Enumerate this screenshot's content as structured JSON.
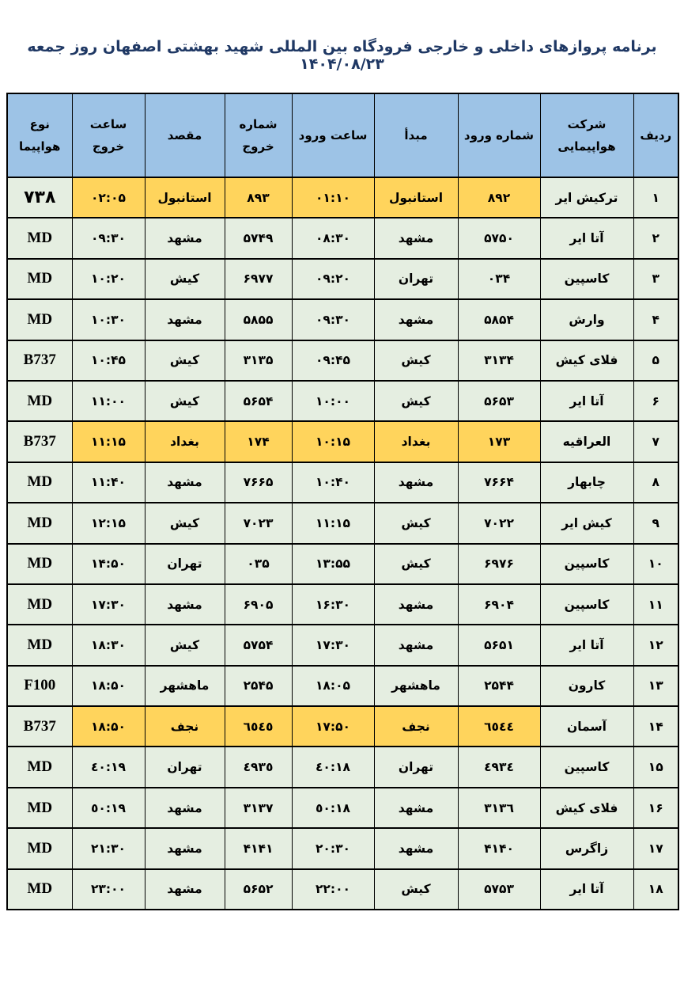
{
  "title": "برنامه پروازهای داخلی و خارجی فرودگاه بین المللی شهید بهشتی اصفهان روز جمعه ۱۴۰۴/۰۸/۲۳",
  "colors": {
    "header_bg": "#9DC3E6",
    "row_bg": "#E5EEE1",
    "highlight_bg": "#FFD45C",
    "title_color": "#1F3864",
    "border": "#000000"
  },
  "table": {
    "headers": [
      "ردیف",
      "شرکت هواپیمایی",
      "شماره ورود",
      "مبدأ",
      "ساعت ورود",
      "شماره خروج",
      "مقصد",
      "ساعت خروج",
      "نوع هواپیما"
    ],
    "rows": [
      {
        "num": "۱",
        "airline": "ترکیش ایر",
        "arrival_no": "۸۹۲",
        "origin": "استانبول",
        "arrival_time": "۰۱:۱۰",
        "departure_no": "۸۹۳",
        "destination": "استانبول",
        "departure_time": "۰۲:۰۵",
        "aircraft": "۷۳۸",
        "highlight": true
      },
      {
        "num": "۲",
        "airline": "آتا ایر",
        "arrival_no": "۵۷۵۰",
        "origin": "مشهد",
        "arrival_time": "۰۸:۳۰",
        "departure_no": "۵۷۴۹",
        "destination": "مشهد",
        "departure_time": "۰۹:۳۰",
        "aircraft": "MD",
        "highlight": false
      },
      {
        "num": "۳",
        "airline": "کاسپین",
        "arrival_no": "۰۳۴",
        "origin": "تهران",
        "arrival_time": "۰۹:۲۰",
        "departure_no": "۶۹۷۷",
        "destination": "کیش",
        "departure_time": "۱۰:۲۰",
        "aircraft": "MD",
        "highlight": false
      },
      {
        "num": "۴",
        "airline": "وارش",
        "arrival_no": "۵۸۵۴",
        "origin": "مشهد",
        "arrival_time": "۰۹:۳۰",
        "departure_no": "۵۸۵۵",
        "destination": "مشهد",
        "departure_time": "۱۰:۳۰",
        "aircraft": "MD",
        "highlight": false
      },
      {
        "num": "۵",
        "airline": "فلای کیش",
        "arrival_no": "۳۱۳۴",
        "origin": "کیش",
        "arrival_time": "۰۹:۴۵",
        "departure_no": "۳۱۳۵",
        "destination": "کیش",
        "departure_time": "۱۰:۴۵",
        "aircraft": "B737",
        "highlight": false
      },
      {
        "num": "۶",
        "airline": "آتا ایر",
        "arrival_no": "۵۶۵۳",
        "origin": "کیش",
        "arrival_time": "۱۰:۰۰",
        "departure_no": "۵۶۵۴",
        "destination": "کیش",
        "departure_time": "۱۱:۰۰",
        "aircraft": "MD",
        "highlight": false
      },
      {
        "num": "۷",
        "airline": "العراقیه",
        "arrival_no": "۱۷۳",
        "origin": "بغداد",
        "arrival_time": "۱۰:۱۵",
        "departure_no": "۱۷۴",
        "destination": "بغداد",
        "departure_time": "۱۱:۱۵",
        "aircraft": "B737",
        "highlight": true
      },
      {
        "num": "۸",
        "airline": "چابهار",
        "arrival_no": "۷۶۶۴",
        "origin": "مشهد",
        "arrival_time": "۱۰:۴۰",
        "departure_no": "۷۶۶۵",
        "destination": "مشهد",
        "departure_time": "۱۱:۴۰",
        "aircraft": "MD",
        "highlight": false
      },
      {
        "num": "۹",
        "airline": "کیش ایر",
        "arrival_no": "۷۰۲۲",
        "origin": "کیش",
        "arrival_time": "۱۱:۱۵",
        "departure_no": "۷۰۲۳",
        "destination": "کیش",
        "departure_time": "۱۲:۱۵",
        "aircraft": "MD",
        "highlight": false
      },
      {
        "num": "۱۰",
        "airline": "کاسپین",
        "arrival_no": "۶۹۷۶",
        "origin": "کیش",
        "arrival_time": "۱۳:۵۵",
        "departure_no": "۰۳۵",
        "destination": "تهران",
        "departure_time": "۱۴:۵۰",
        "aircraft": "MD",
        "highlight": false
      },
      {
        "num": "۱۱",
        "airline": "کاسپین",
        "arrival_no": "۶۹۰۴",
        "origin": "مشهد",
        "arrival_time": "۱۶:۳۰",
        "departure_no": "۶۹۰۵",
        "destination": "مشهد",
        "departure_time": "۱۷:۳۰",
        "aircraft": "MD",
        "highlight": false
      },
      {
        "num": "۱۲",
        "airline": "آتا ایر",
        "arrival_no": "۵۶۵۱",
        "origin": "مشهد",
        "arrival_time": "۱۷:۳۰",
        "departure_no": "۵۷۵۴",
        "destination": "کیش",
        "departure_time": "۱۸:۳۰",
        "aircraft": "MD",
        "highlight": false
      },
      {
        "num": "۱۳",
        "airline": "کارون",
        "arrival_no": "۲۵۴۴",
        "origin": "ماهشهر",
        "arrival_time": "۱۸:۰۵",
        "departure_no": "۲۵۴۵",
        "destination": "ماهشهر",
        "departure_time": "۱۸:۵۰",
        "aircraft": "F100",
        "highlight": false
      },
      {
        "num": "۱۴",
        "airline": "آسمان",
        "arrival_no": "٦٥٤٤",
        "origin": "نجف",
        "arrival_time": "۱۷:۵۰",
        "departure_no": "٦٥٤٥",
        "destination": "نجف",
        "departure_time": "۱۸:۵۰",
        "aircraft": "B737",
        "highlight": true
      },
      {
        "num": "۱۵",
        "airline": "کاسپین",
        "arrival_no": "٤٩٣٤",
        "origin": "تهران",
        "arrival_time": "۱۸:٤۰",
        "departure_no": "٤٩٣٥",
        "destination": "تهران",
        "departure_time": "۱۹:٤۰",
        "aircraft": "MD",
        "highlight": false
      },
      {
        "num": "۱۶",
        "airline": "فلای کیش",
        "arrival_no": "۳۱۳٦",
        "origin": "مشهد",
        "arrival_time": "۱۸:٥۰",
        "departure_no": "۳۱۳۷",
        "destination": "مشهد",
        "departure_time": "۱۹:٥۰",
        "aircraft": "MD",
        "highlight": false
      },
      {
        "num": "۱۷",
        "airline": "زاگرس",
        "arrival_no": "۴۱۴۰",
        "origin": "مشهد",
        "arrival_time": "۲۰:۳۰",
        "departure_no": "۴۱۴۱",
        "destination": "مشهد",
        "departure_time": "۲۱:۳۰",
        "aircraft": "MD",
        "highlight": false
      },
      {
        "num": "۱۸",
        "airline": "آتا ایر",
        "arrival_no": "۵۷۵۳",
        "origin": "کیش",
        "arrival_time": "۲۲:۰۰",
        "departure_no": "۵۶۵۲",
        "destination": "مشهد",
        "departure_time": "۲۳:۰۰",
        "aircraft": "MD",
        "highlight": false
      }
    ]
  }
}
